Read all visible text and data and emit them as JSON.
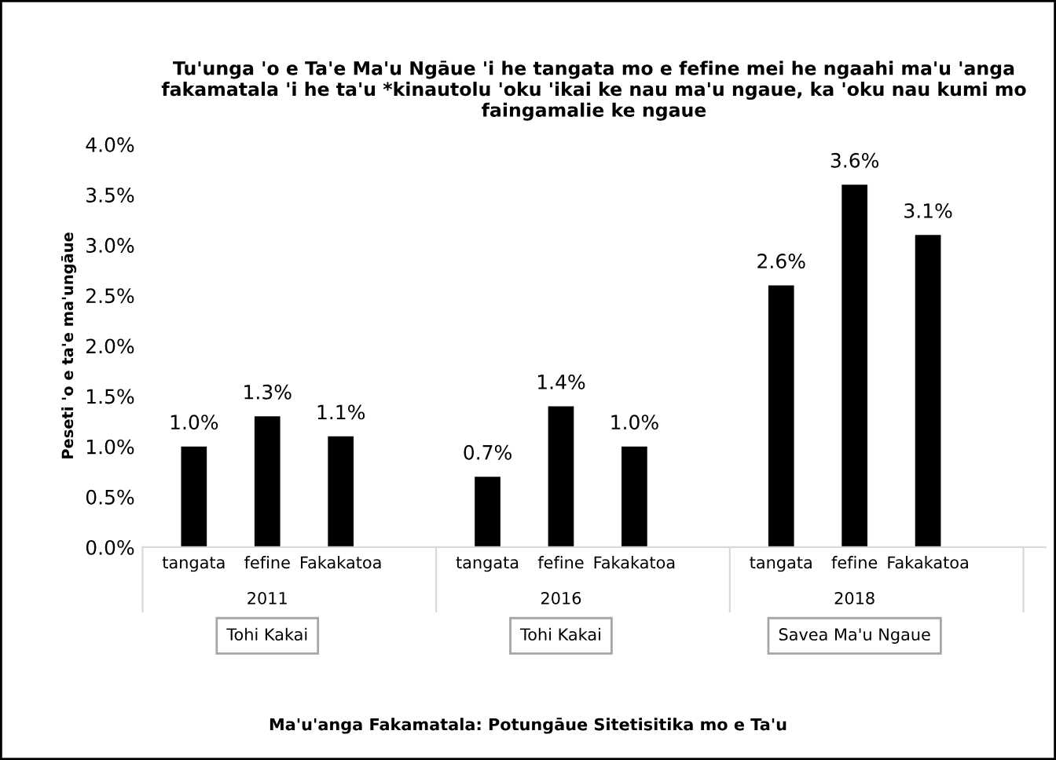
{
  "chart_data": {
    "type": "bar",
    "title": "Tu'unga 'o e Ta'e Ma'u Ngāue 'i he tangata mo e fefine mei he ngaahi ma'u 'anga fakamatala 'i he ta'u *kinautolu 'oku 'ikai ke nau ma'u ngaue, ka 'oku nau kumi mo faingamalie ke ngaue",
    "ylabel": "Peseti 'o e ta'e ma'ungāue",
    "categories": [
      "tangata",
      "fefine",
      "Fakakatoa",
      "tangata",
      "fefine",
      "Fakakatoa",
      "tangata",
      "fefine",
      "Fakakatoa"
    ],
    "values": [
      1.0,
      1.3,
      1.1,
      0.7,
      1.4,
      1.0,
      2.6,
      3.6,
      3.1
    ],
    "value_labels": [
      "1.0%",
      "1.3%",
      "1.1%",
      "0.7%",
      "1.4%",
      "1.0%",
      "2.6%",
      "3.6%",
      "3.1%"
    ],
    "color": "#000000",
    "ylim": [
      0,
      4.0
    ],
    "yticks": [
      {
        "value": 0,
        "label": "0.0%"
      },
      {
        "value": 0.5,
        "label": "0.5%"
      },
      {
        "value": 1.0,
        "label": "1.0%"
      },
      {
        "value": 1.5,
        "label": "1.5%"
      },
      {
        "value": 2.0,
        "label": "2.0%"
      },
      {
        "value": 2.5,
        "label": "2.5%"
      },
      {
        "value": 3.0,
        "label": "3.0%"
      },
      {
        "value": 3.5,
        "label": "3.5%"
      },
      {
        "value": 4.0,
        "label": "4.0%"
      }
    ],
    "grid": false,
    "annotations": [
      "2011",
      "2016",
      "2018",
      "Tohi Kakai",
      "Tohi Kakai",
      "Savea Ma'u Ngaue",
      "Ma'u'anga Fakamatala: Potungāue Sitetisitika mo e Ta'u"
    ]
  }
}
